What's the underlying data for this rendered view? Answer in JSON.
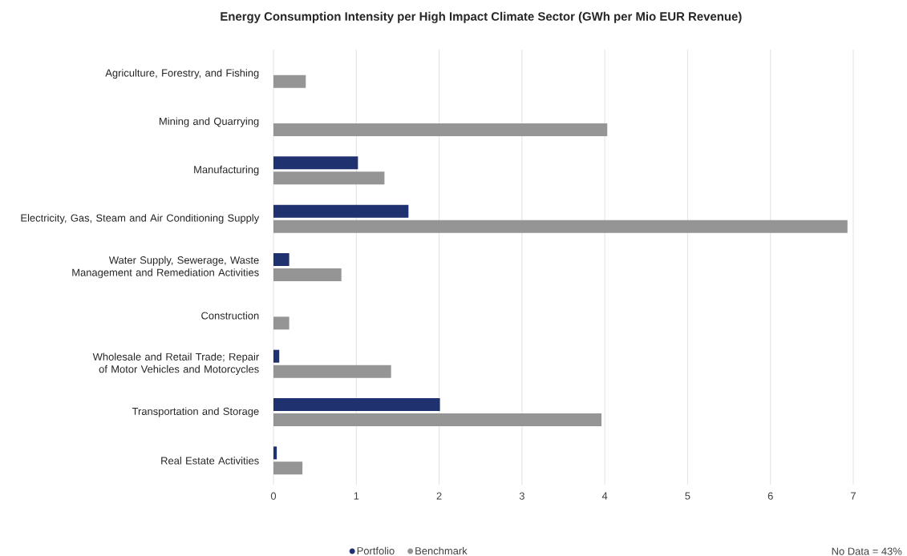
{
  "chart_data": {
    "type": "bar",
    "orientation": "horizontal",
    "title": "Energy Consumption Intensity per High Impact Climate Sector (GWh per Mio EUR Revenue)",
    "categories": [
      "Agriculture, Forestry, and Fishing",
      "Mining and Quarrying",
      "Manufacturing",
      "Electricity, Gas, Steam and Air Conditioning Supply",
      "Water Supply, Sewerage, Waste Management and Remediation Activities",
      "Construction",
      "Wholesale and Retail Trade; Repair of Motor Vehicles and Motorcycles",
      "Transportation and Storage",
      "Real Estate Activities"
    ],
    "series": [
      {
        "name": "Portfolio",
        "color": "#1f316f",
        "values": [
          null,
          null,
          1.02,
          1.63,
          0.19,
          null,
          0.07,
          2.01,
          0.04
        ]
      },
      {
        "name": "Benchmark",
        "color": "#959595",
        "values": [
          0.39,
          4.03,
          1.34,
          6.93,
          0.82,
          0.19,
          1.42,
          3.96,
          0.35
        ]
      }
    ],
    "xlim": [
      0,
      7
    ],
    "xticks": [
      0,
      1,
      2,
      3,
      4,
      5,
      6,
      7
    ],
    "grid": "x",
    "legend": "bottom",
    "annotations": [
      "No Data = 43%"
    ]
  }
}
